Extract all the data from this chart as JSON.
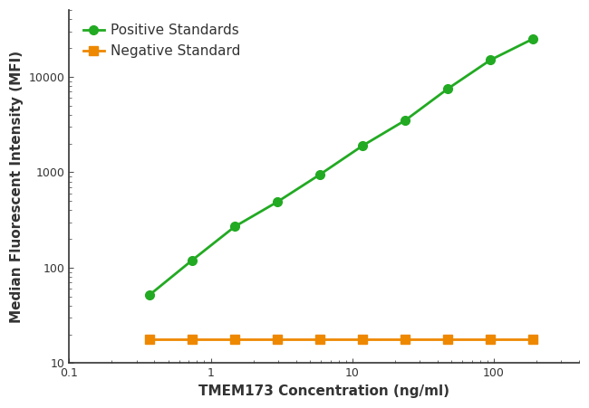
{
  "positive_x": [
    0.37,
    0.74,
    1.48,
    2.96,
    5.93,
    11.85,
    23.7,
    47.4,
    94.81,
    189.62
  ],
  "positive_y": [
    52,
    120,
    270,
    490,
    950,
    1900,
    3500,
    7500,
    15000,
    25000
  ],
  "negative_x": [
    0.37,
    0.74,
    1.48,
    2.96,
    5.93,
    11.85,
    23.7,
    47.4,
    94.81,
    189.62
  ],
  "negative_y": [
    18,
    18,
    18,
    18,
    18,
    18,
    18,
    18,
    18,
    18
  ],
  "positive_color": "#22aa22",
  "negative_color": "#ee8800",
  "positive_label": "Positive Standards",
  "negative_label": "Negative Standard",
  "xlabel": "TMEM173 Concentration (ng/ml)",
  "ylabel": "Median Fluorescent Intensity (MFI)",
  "xlim": [
    0.1,
    400
  ],
  "ylim": [
    10,
    50000
  ],
  "background_color": "#ffffff",
  "plot_bg_color": "#ffffff",
  "marker_size": 7,
  "line_width": 2.0,
  "legend_fontsize": 11,
  "axis_label_fontsize": 11,
  "tick_fontsize": 9
}
